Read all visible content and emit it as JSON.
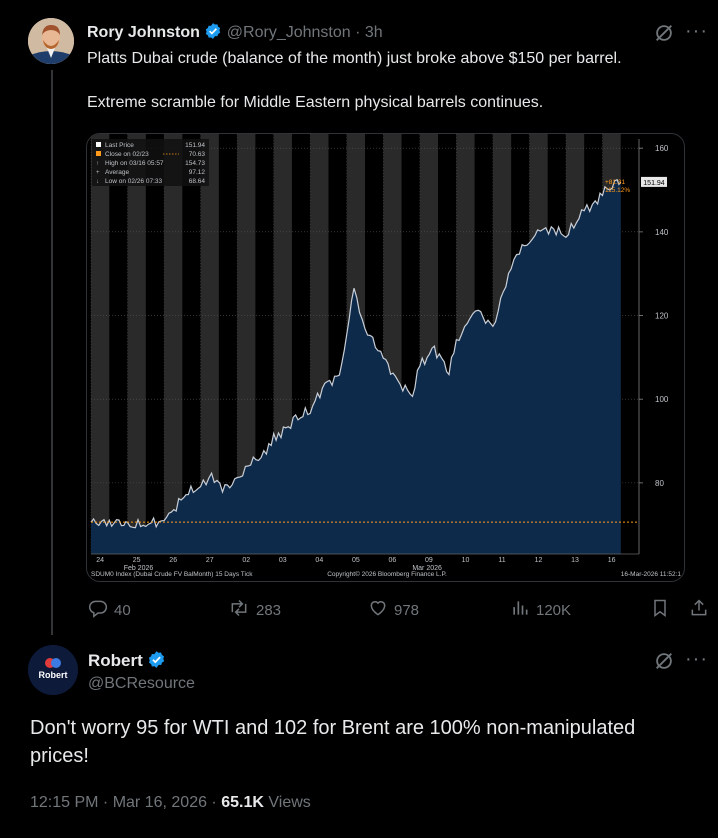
{
  "tweet": {
    "author_name": "Rory Johnston",
    "author_handle": "@Rory_Johnston",
    "time": "· 3h",
    "text_line1": "Platts Dubai crude (balance of the month) just broke above $150 per barrel.",
    "text_line2": "Extreme scramble for Middle Eastern physical barrels continues.",
    "stats": {
      "replies": "40",
      "reposts": "283",
      "likes": "978",
      "views": "120K"
    },
    "icons": [
      "grok-icon",
      "reply-icon",
      "repost-icon",
      "like-icon",
      "views-icon",
      "bookmark-icon",
      "share-icon"
    ]
  },
  "reply": {
    "author_name": "Robert",
    "author_handle": "@BCResource",
    "avatar_label": "Robert",
    "text_line1": "Don't worry 95 for WTI and 102 for Brent are 100% non-manipulated",
    "text_line2": "prices!",
    "timestamp": "12:15 PM · Mar 16, 2026 ·",
    "views_count": "65.1K",
    "views_label": "Views"
  },
  "colors": {
    "background": "#000000",
    "text": "#e7e9ea",
    "muted": "#71767b",
    "verified": "#1d9bf0",
    "chart_fill": "#0e2a4a",
    "chart_line": "#d0d4da",
    "chart_accent": "#ff9a1a"
  },
  "chart_data": {
    "type": "area",
    "legend": {
      "last_price_label": "Last Price",
      "last_price_value": "151.94",
      "close_label": "Close on 02/23",
      "close_value": "70.63",
      "high_label": "High on 03/16 05:57",
      "high_value": "154.73",
      "average_label": "Average",
      "average_value": "97.12",
      "low_label": "Low on 02/26 07:33",
      "low_value": "68.64"
    },
    "last_price_tag": "151.94",
    "change_abs": "+81.31",
    "change_pct": "115.12%",
    "y_ticks": [
      "160",
      "140",
      "120",
      "100",
      "80"
    ],
    "ylim": [
      63,
      161
    ],
    "x_ticks": [
      "24",
      "25",
      "26",
      "27",
      "02",
      "03",
      "04",
      "05",
      "06",
      "09",
      "10",
      "11",
      "12",
      "13",
      "16"
    ],
    "month_labels": [
      "Feb 2026",
      "Mar 2026"
    ],
    "footer_left": "SDUM0 Index (Dubai Crude FV BalMonth) 15 Days Tick",
    "footer_center": "Copyright© 2026 Bloomberg Finance L.P.",
    "footer_right": "16-Mar-2026 11:52:1",
    "reference_line": 70.63,
    "x": [
      0,
      0.5,
      0.9,
      1.0,
      1.5,
      2.0,
      2.2,
      2.6,
      3.0,
      3.3,
      3.6,
      4.0,
      4.3,
      4.8,
      5.0,
      5.2,
      5.6,
      6.0,
      6.4,
      6.8,
      7.0,
      7.2,
      7.5,
      8.0,
      8.4,
      8.8,
      9.0,
      9.4,
      9.8,
      10.0,
      10.3,
      10.6,
      11.0,
      11.5,
      11.8,
      12.0,
      12.3,
      12.6,
      13.0,
      13.5,
      13.8,
      14.0,
      14.4,
      14.5
    ],
    "values": [
      70.6,
      70.4,
      70.9,
      69.5,
      70.3,
      70.8,
      72.8,
      77.5,
      79.0,
      82.0,
      78.5,
      80.5,
      84.5,
      87.0,
      91.0,
      92.0,
      95.0,
      97.5,
      103.5,
      105.5,
      116.0,
      126.0,
      117.0,
      110.0,
      104.0,
      101.0,
      108.0,
      112.0,
      107.0,
      113.0,
      119.0,
      121.0,
      117.0,
      132.0,
      136.0,
      138.0,
      140.0,
      141.0,
      139.0,
      145.0,
      147.0,
      149.5,
      151.5,
      151.9
    ]
  }
}
